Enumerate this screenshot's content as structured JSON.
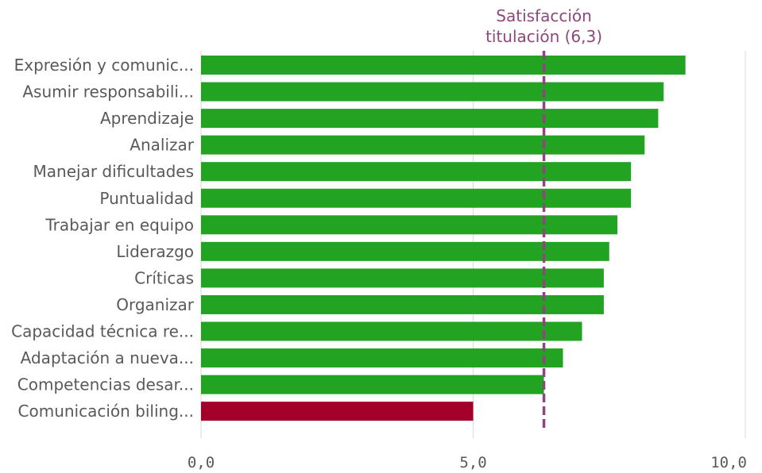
{
  "chart_data": {
    "type": "bar",
    "orientation": "horizontal",
    "title": "",
    "xlabel": "",
    "ylabel": "",
    "categories": [
      "Expresión y comunic...",
      "Asumir responsabili...",
      "Aprendizaje",
      "Analizar",
      "Manejar dificultades",
      "Puntualidad",
      "Trabajar en equipo",
      "Liderazgo",
      "Críticas",
      "Organizar",
      "Capacidad técnica re...",
      "Adaptación a nueva...",
      "Competencias desar...",
      "Comunicación biling..."
    ],
    "values": [
      8.9,
      8.5,
      8.4,
      8.15,
      7.9,
      7.9,
      7.65,
      7.5,
      7.4,
      7.4,
      7.0,
      6.65,
      6.3,
      5.0
    ],
    "xlim": [
      0,
      10
    ],
    "ticks": [
      {
        "value": 0,
        "label": "0,0"
      },
      {
        "value": 5,
        "label": "5,0"
      },
      {
        "value": 10,
        "label": "10,0"
      }
    ],
    "grid": true,
    "colors": {
      "above_reference": "#22a322",
      "below_reference": "#a3002a",
      "reference_line": "#8e477d",
      "text": "#595959",
      "grid": "#d9d9d9"
    },
    "reference_line": {
      "value": 6.3,
      "label_line1": "Satisfacción",
      "label_line2": "titulación (6,3)"
    }
  }
}
